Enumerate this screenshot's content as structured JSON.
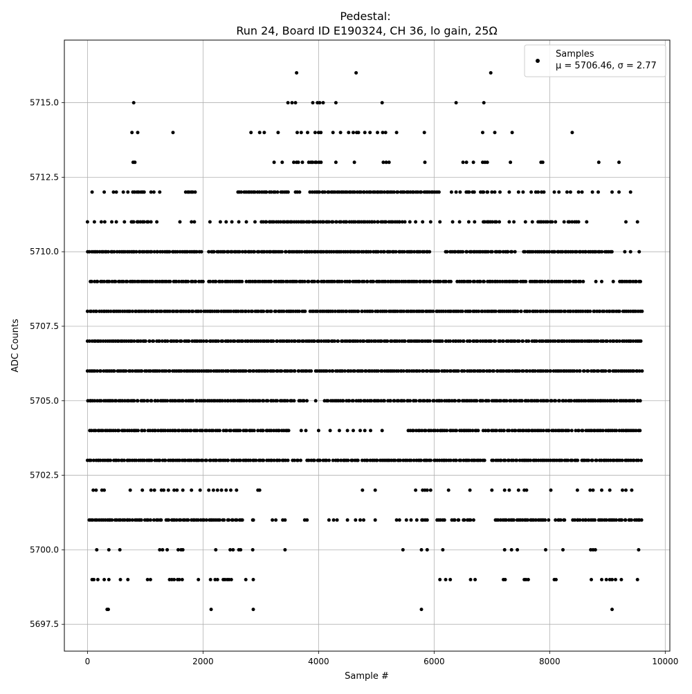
{
  "chart_data": {
    "type": "scatter",
    "title_line1": "Pedestal:",
    "title_line2": "Run 24, Board ID E190324, CH 36, lo gain, 25Ω",
    "xlabel": "Sample #",
    "ylabel": "ADC Counts",
    "xlim": [
      -400,
      10080
    ],
    "ylim": [
      5696.6,
      5717.1
    ],
    "x_ticks": [
      0,
      2000,
      4000,
      6000,
      8000,
      10000
    ],
    "x_tick_labels": [
      "0",
      "2000",
      "4000",
      "6000",
      "8000",
      "10000"
    ],
    "y_ticks": [
      5697.5,
      5700.0,
      5702.5,
      5705.0,
      5707.5,
      5710.0,
      5712.5,
      5715.0
    ],
    "y_tick_labels": [
      "5697.5",
      "5700.0",
      "5702.5",
      "5705.0",
      "5707.5",
      "5710.0",
      "5712.5",
      "5715.0"
    ],
    "grid": true,
    "legend_position": "top-right",
    "legend": {
      "label": "Samples",
      "stats": "μ = 5706.46, σ = 2.77"
    },
    "series": [
      {
        "name": "Samples",
        "color": "#000000",
        "marker": "circle",
        "n_points": 9600,
        "x_range": [
          0,
          9600
        ],
        "level_coverage": [
          {
            "y": 5698,
            "x": [
              340,
              360,
              2140,
              2870,
              5780,
              9080
            ]
          },
          {
            "y": 5699,
            "x": [
              80,
              110,
              180,
              290,
              370,
              570,
              700,
              1040,
              1090,
              1420,
              1460,
              1500,
              1560,
              1590,
              1640,
              1920,
              2130,
              2210,
              2250,
              2350,
              2380,
              2420,
              2450,
              2490,
              2740,
              2870,
              6100,
              6200,
              6280,
              6630,
              6710,
              7200,
              7230,
              7560,
              7590,
              7630,
              8080,
              8110,
              8720,
              8900,
              8980,
              9040,
              9080,
              9140,
              9240,
              9520
            ]
          },
          {
            "y": 5700,
            "x": [
              160,
              370,
              560,
              1250,
              1300,
              1380,
              1570,
              1620,
              1650,
              2220,
              2470,
              2520,
              2620,
              2650,
              2860,
              3420,
              5460,
              5780,
              5880,
              6150,
              7220,
              7340,
              7440,
              7930,
              8230,
              8710,
              8750,
              8790,
              9540
            ]
          },
          {
            "y": 5701,
            "x": [
              [
                30,
                1100
              ],
              [
                1150,
                1300
              ],
              [
                1350,
                2400
              ],
              [
                2420,
                2700
              ],
              [
                2850,
                2900
              ],
              3200,
              3260,
              3380,
              3420,
              3760,
              3800,
              4180,
              4260,
              4320,
              4500,
              4640,
              4720,
              4780,
              4980,
              5350,
              5400,
              5520,
              5600,
              5700,
              [
                5780,
                5900
              ],
              [
                6050,
                6200
              ],
              [
                6300,
                6450
              ],
              [
                6500,
                6700
              ],
              [
                7050,
                8000
              ],
              [
                8100,
                8300
              ],
              [
                8400,
                8800
              ],
              [
                8850,
                9600
              ]
            ]
          },
          {
            "y": 5702,
            "x": [
              100,
              150,
              250,
              290,
              740,
              950,
              1100,
              1160,
              1280,
              1320,
              1400,
              1500,
              1550,
              1650,
              1800,
              1950,
              2100,
              2180,
              2250,
              2320,
              2400,
              2480,
              2580,
              2950,
              2980,
              4760,
              4980,
              5680,
              5800,
              5840,
              5880,
              5940,
              6250,
              6620,
              7000,
              7220,
              7300,
              7460,
              7560,
              7600,
              8020,
              8480,
              8700,
              8750,
              8900,
              9040,
              9260,
              9320,
              9420
            ]
          },
          {
            "y": 5703,
            "x": [
              [
                0,
                3500
              ],
              [
                3550,
                3700
              ],
              [
                3800,
                4200
              ],
              [
                4250,
                4700
              ],
              [
                4750,
                5600
              ],
              [
                5650,
                6900
              ],
              [
                7000,
                8500
              ],
              [
                8550,
                9600
              ]
            ]
          },
          {
            "y": 5704,
            "x": [
              [
                40,
                1000
              ],
              [
                1050,
                2300
              ],
              [
                2350,
                2900
              ],
              [
                2950,
                3500
              ],
              3700,
              3780,
              4000,
              4200,
              4360,
              4500,
              4600,
              4720,
              4800,
              4900,
              5100,
              [
                5550,
                6800
              ],
              [
                6850,
                7300
              ],
              [
                7350,
                8400
              ],
              [
                8450,
                9600
              ]
            ]
          },
          {
            "y": 5705,
            "x": [
              [
                0,
                3600
              ],
              [
                3650,
                3800
              ],
              3950,
              [
                4100,
                9600
              ]
            ]
          },
          {
            "y": 5706,
            "x": [
              [
                0,
                3900
              ],
              [
                3950,
                9600
              ]
            ]
          },
          {
            "y": 5707,
            "x": [
              [
                0,
                9600
              ]
            ]
          },
          {
            "y": 5708,
            "x": [
              [
                0,
                3800
              ],
              [
                3850,
                9600
              ]
            ]
          },
          {
            "y": 5709,
            "x": [
              [
                50,
                2000
              ],
              [
                2100,
                2700
              ],
              [
                2750,
                6300
              ],
              [
                6400,
                7600
              ],
              [
                7650,
                8600
              ],
              8800,
              8900,
              9100,
              [
                9200,
                9600
              ]
            ]
          },
          {
            "y": 5710,
            "x": [
              [
                0,
                2000
              ],
              [
                2100,
                2800
              ],
              [
                2800,
                5950
              ],
              [
                6200,
                7400
              ],
              [
                7550,
                9100
              ],
              9300,
              9400,
              9550
            ]
          },
          {
            "y": 5711,
            "x": [
              0,
              120,
              240,
              300,
              420,
              500,
              640,
              760,
              [
                780,
                1100
              ],
              1200,
              1600,
              1800,
              1850,
              2120,
              2300,
              2400,
              2500,
              2620,
              2750,
              2900,
              [
                3000,
                5500
              ],
              5580,
              5680,
              5800,
              5940,
              6100,
              6320,
              6440,
              6600,
              6700,
              [
                6850,
                7150
              ],
              7300,
              7380,
              7580,
              7700,
              [
                7800,
                8050
              ],
              8100,
              8250,
              [
                8320,
                8500
              ],
              8640,
              9320,
              9520
            ]
          },
          {
            "y": 5712,
            "x": [
              80,
              290,
              450,
              500,
              620,
              700,
              [
                780,
                1000
              ],
              1100,
              1150,
              1250,
              [
                1700,
                1900
              ],
              [
                2600,
                3300
              ],
              [
                3350,
                3500
              ],
              [
                3600,
                3700
              ],
              [
                3850,
                6100
              ],
              6300,
              6380,
              6450,
              [
                6550,
                6700
              ],
              [
                6800,
                6950
              ],
              7000,
              7050,
              7140,
              7300,
              7460,
              7540,
              7680,
              7760,
              7800,
              7860,
              7900,
              8080,
              8160,
              8300,
              8360,
              8500,
              8560,
              8740,
              8840,
              9080,
              9200,
              9400
            ]
          },
          {
            "y": 5713,
            "x": [
              790,
              820,
              3230,
              3370,
              3570,
              3620,
              3650,
              3720,
              [
                3830,
                4050
              ],
              4300,
              4620,
              5120,
              5170,
              5220,
              5840,
              6500,
              6560,
              6680,
              6840,
              6880,
              6920,
              7320,
              7850,
              7880,
              8850,
              9200
            ]
          },
          {
            "y": 5714,
            "x": [
              770,
              870,
              1480,
              2830,
              2980,
              3060,
              3300,
              3630,
              3700,
              3810,
              3940,
              4000,
              4040,
              4250,
              4380,
              4520,
              4600,
              4660,
              4690,
              4800,
              4890,
              5020,
              5110,
              5160,
              5350,
              5830,
              6840,
              7050,
              7350,
              8390
            ]
          },
          {
            "y": 5715,
            "x": [
              800,
              3470,
              3540,
              3600,
              3900,
              3980,
              4020,
              4080,
              4300,
              5100,
              6380,
              6860
            ]
          },
          {
            "y": 5716,
            "x": [
              3620,
              4650,
              6980
            ]
          }
        ]
      }
    ]
  }
}
